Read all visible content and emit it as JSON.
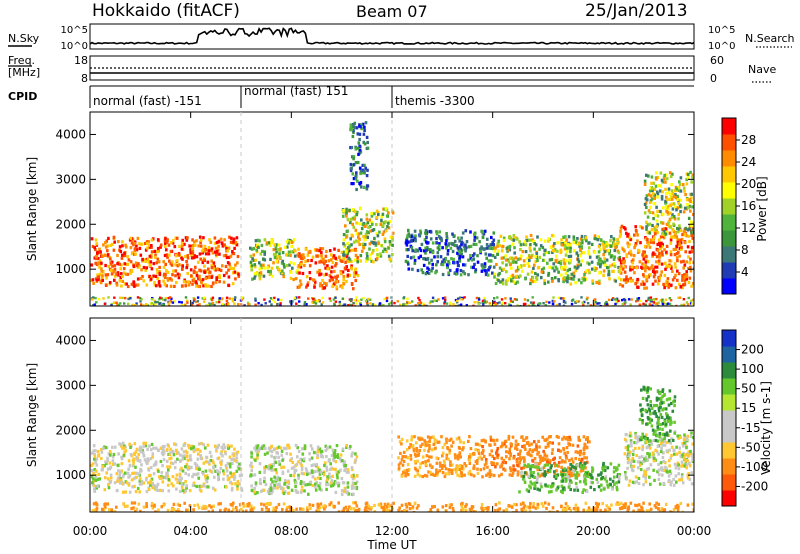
{
  "header": {
    "station": "Hokkaido (fitACF)",
    "beam": "Beam 07",
    "date": "25/Jan/2013"
  },
  "nsky_panel": {
    "left_label": "N.Sky",
    "right_label": "N.Search",
    "left_ticks": [
      "10^5",
      "10^0"
    ],
    "right_ticks": [
      "10^5",
      "10^0"
    ]
  },
  "freq_panel": {
    "left_label_1": "Freq.",
    "left_label_2": "[MHz]",
    "right_label": "Nave",
    "left_ticks": [
      "18",
      "8"
    ],
    "right_ticks": [
      "60",
      "0"
    ]
  },
  "cpid_panel": {
    "label": "CPID",
    "segments": [
      {
        "label": "normal (fast) -151",
        "start_hour": 0,
        "end_hour": 6
      },
      {
        "label": "normal (fast) 151",
        "start_hour": 6,
        "end_hour": 12
      },
      {
        "label": "themis -3300",
        "start_hour": 12,
        "end_hour": 24
      }
    ]
  },
  "power_colorbar": {
    "title": "Power [dB]",
    "ticks": [
      "28",
      "24",
      "20",
      "16",
      "12",
      "8",
      "4"
    ],
    "colors": [
      "#0000ff",
      "#1f3cb4",
      "#3c7878",
      "#3c963c",
      "#50b43c",
      "#a0d228",
      "#ffff00",
      "#ffc800",
      "#ff8c00",
      "#ff5000",
      "#ff0000"
    ]
  },
  "velocity_colorbar": {
    "title": "Velocity [m s-1]",
    "ticks": [
      "200",
      "100",
      "50",
      "15",
      "-15",
      "-50",
      "-100",
      "-200"
    ],
    "colors": [
      "#1432c8",
      "#1e64a0",
      "#2d8c3c",
      "#64c82d",
      "#b4e632",
      "#c8c8c8",
      "#c8c8c8",
      "#ffc832",
      "#ff8c14",
      "#ff5a0a",
      "#ff0000"
    ]
  },
  "chart_data": {
    "type": "heatmap",
    "x_label": "Time UT",
    "x_ticks": [
      "00:00",
      "04:00",
      "08:00",
      "12:00",
      "16:00",
      "20:00",
      "00:00"
    ],
    "x_range_hours": [
      0,
      24
    ],
    "y_label": "Slant Range [km]",
    "y_ticks": [
      1000,
      2000,
      3000,
      4000
    ],
    "y_range_km": [
      180,
      4500
    ],
    "cpid_change_hours": [
      6,
      12
    ],
    "power_regions": [
      {
        "t0": 0.0,
        "t1": 5.9,
        "r0": 650,
        "r1": 1750,
        "level": "high"
      },
      {
        "t0": 6.3,
        "t1": 8.2,
        "r0": 800,
        "r1": 1700,
        "level": "medium"
      },
      {
        "t0": 8.2,
        "t1": 10.6,
        "r0": 600,
        "r1": 1500,
        "level": "high"
      },
      {
        "t0": 10.0,
        "t1": 12.0,
        "r0": 1200,
        "r1": 2400,
        "level": "medium"
      },
      {
        "t0": 12.5,
        "t1": 16.0,
        "r0": 900,
        "r1": 1900,
        "level": "low"
      },
      {
        "t0": 16.0,
        "t1": 21.0,
        "r0": 700,
        "r1": 1800,
        "level": "medium"
      },
      {
        "t0": 21.0,
        "t1": 24.0,
        "r0": 600,
        "r1": 2000,
        "level": "high"
      },
      {
        "t0": 22.0,
        "t1": 24.0,
        "r0": 1800,
        "r1": 3200,
        "level": "medium"
      },
      {
        "t0": 10.3,
        "t1": 11.0,
        "r0": 2800,
        "r1": 4300,
        "level": "low"
      }
    ],
    "velocity_regions": [
      {
        "t0": 0.0,
        "t1": 6.0,
        "r0": 650,
        "r1": 1750,
        "vel": -5
      },
      {
        "t0": 6.3,
        "t1": 10.6,
        "r0": 600,
        "r1": 1700,
        "vel": 5
      },
      {
        "t0": 12.2,
        "t1": 15.5,
        "r0": 1000,
        "r1": 1900,
        "vel": -60
      },
      {
        "t0": 15.5,
        "t1": 19.8,
        "r0": 1000,
        "r1": 1900,
        "vel": -80
      },
      {
        "t0": 17.0,
        "t1": 21.0,
        "r0": 650,
        "r1": 1300,
        "vel": 40
      },
      {
        "t0": 21.2,
        "t1": 24.0,
        "r0": 800,
        "r1": 2000,
        "vel": 0
      },
      {
        "t0": 21.8,
        "t1": 23.2,
        "r0": 1800,
        "r1": 3000,
        "vel": 50
      },
      {
        "t0": 0.0,
        "t1": 24.0,
        "r0": 180,
        "r1": 420,
        "vel": -60
      }
    ]
  }
}
